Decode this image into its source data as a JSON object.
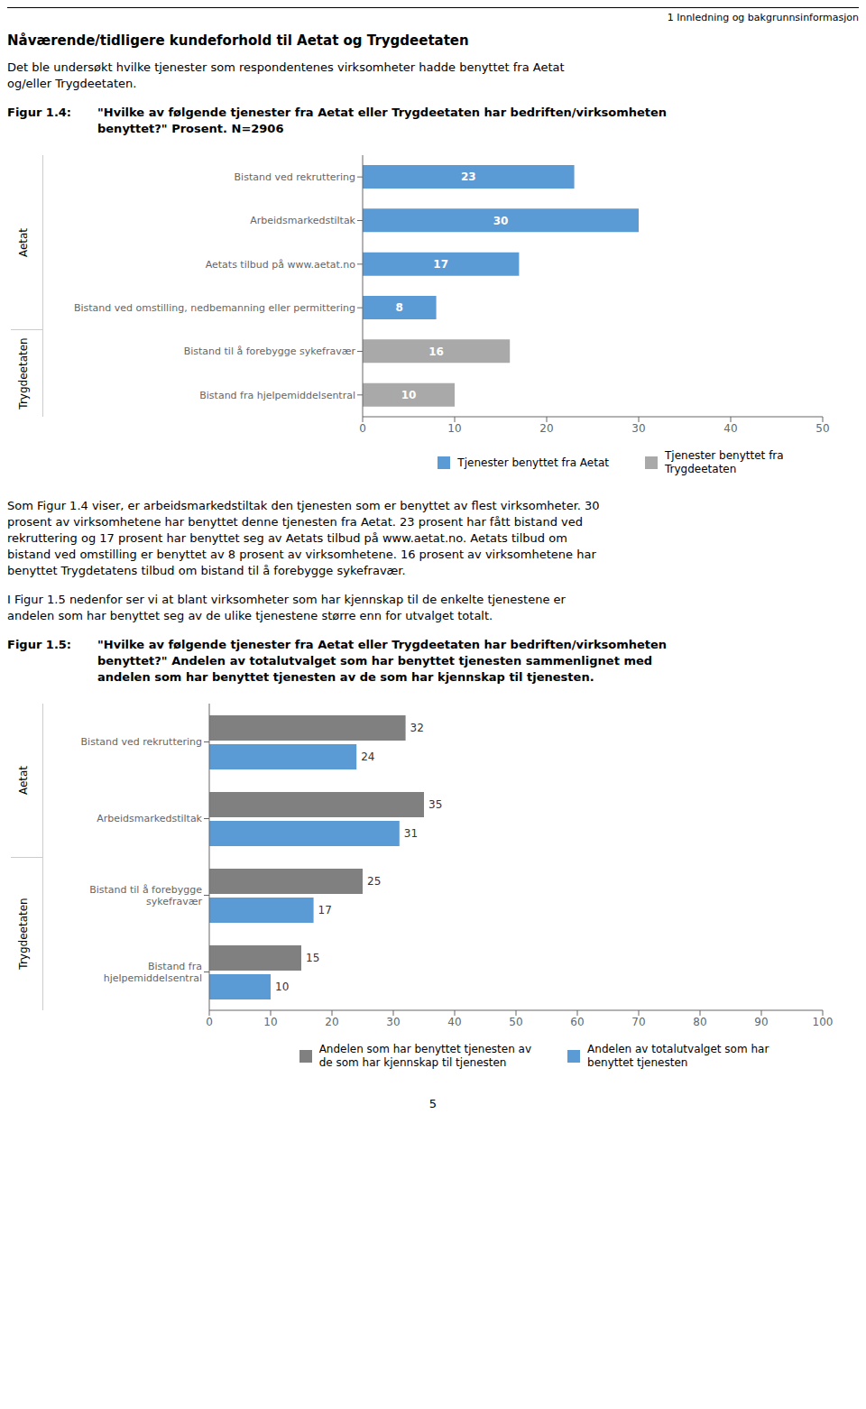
{
  "chart_data": [
    {
      "type": "bar",
      "orientation": "horizontal",
      "stacked": true,
      "data_labels": true,
      "grid": false,
      "legend": "bottom",
      "title": "Figur 1.4:",
      "subtitle": "\"Hvilke av følgende tjenester fra Aetat eller Trygdeetaten har bedriften/virksomheten\nbenyttet?\" Prosent. N=2906",
      "annotations": [
        "1 Innledning og bakgrunnsinformasjon",
        "Nåværende/tidligere kundeforhold til Aetat og Trygdeetaten",
        "Det ble undersøkt hvilke tjenester som respondentenes virksomheter hadde benyttet fra Aetat\nog/eller Trygdeetaten."
      ],
      "categories": [
        "Bistand ved rekruttering",
        "Arbeidsmarkedstiltak",
        "Aetats tilbud på www.aetat.no",
        "Bistand ved omstilling, nedbemanning eller permittering",
        "Bistand til å forebygge sykefravær",
        "Bistand fra hjelpemiddelsentral"
      ],
      "group_labels": [
        "Aetat",
        "Aetat",
        "Aetat",
        "Aetat",
        "Trygdeetaten",
        "Trygdeetaten"
      ],
      "series": [
        {
          "name": "Tjenester benyttet fra Aetat",
          "color": "#5B9BD5",
          "values": [
            23,
            30,
            17,
            8,
            null,
            null
          ]
        },
        {
          "name": "Tjenester benyttet fra\nTrygdeetaten",
          "color": "#A9A9A9",
          "values": [
            null,
            null,
            null,
            null,
            16,
            10
          ]
        }
      ],
      "xlim": [
        0,
        50
      ],
      "xticks": [
        0,
        10,
        20,
        30,
        40,
        50
      ]
    },
    {
      "type": "bar",
      "orientation": "horizontal",
      "stacked": false,
      "data_labels": true,
      "grid": false,
      "legend": "bottom",
      "title": "Figur 1.5:",
      "subtitle": "\"Hvilke av følgende tjenester fra Aetat eller Trygdeetaten har bedriften/virksomheten\nbenyttet?\" Andelen av totalutvalget som har benyttet tjenesten sammenlignet med\nandelen som har benyttet tjenesten av de som har kjennskap til tjenesten.",
      "annotations": [
        "Som Figur 1.4 viser, er arbeidsmarkedstiltak den tjenesten som er benyttet av flest virksomheter. 30\nprosent av virksomhetene har benyttet denne tjenesten fra Aetat. 23 prosent har fått bistand ved\nrekruttering og 17 prosent har benyttet seg av Aetats tilbud på www.aetat.no. Aetats tilbud om\nbistand ved omstilling er benyttet av 8 prosent av virksomhetene. 16 prosent av virksomhetene har\nbenyttet Trygdetatens tilbud om bistand til å forebygge sykefravær.",
        "I Figur 1.5 nedenfor ser vi at blant virksomheter som har kjennskap til de enkelte tjenestene er\nandelen som har benyttet seg av de ulike tjenestene større enn for utvalget totalt.",
        "5"
      ],
      "categories": [
        "Bistand ved rekruttering",
        "Arbeidsmarkedstiltak",
        "Bistand til å forebygge\nsykefravær",
        "Bistand fra\nhjelpemiddelsentral"
      ],
      "group_labels": [
        "Aetat",
        "Aetat",
        "Trygdeetaten",
        "Trygdeetaten"
      ],
      "series": [
        {
          "name": "Andelen som har benyttet tjenesten av\nde som har kjennskap til tjenesten",
          "color": "#808080",
          "values": [
            32,
            35,
            25,
            15
          ]
        },
        {
          "name": "Andelen av totalutvalget som har\nbenyttet tjenesten",
          "color": "#5B9BD5",
          "values": [
            24,
            31,
            17,
            10
          ]
        }
      ],
      "xlim": [
        0,
        100
      ],
      "xticks": [
        0,
        10,
        20,
        30,
        40,
        50,
        60,
        70,
        80,
        90,
        100
      ]
    }
  ]
}
